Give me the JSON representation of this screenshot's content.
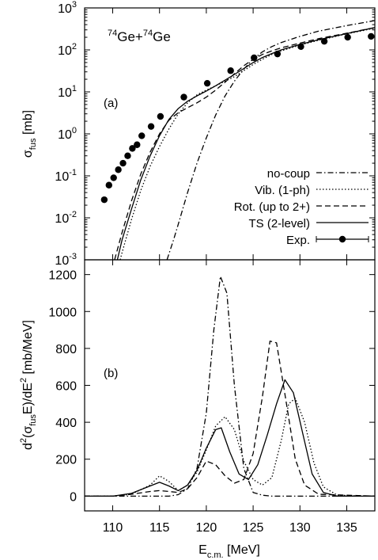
{
  "figure": {
    "xlabel_main": "E",
    "xlabel_sub": "c.m.",
    "xlabel_unit": " [MeV]"
  },
  "chart_data": [
    {
      "panel": "(a)",
      "type": "line",
      "title_parts": [
        "74",
        "Ge+",
        "74",
        "Ge"
      ],
      "ylabel_main": "σ",
      "ylabel_sub": "fus",
      "ylabel_unit": " [mb]",
      "xlim": [
        107,
        138
      ],
      "ylim": [
        0.001,
        1000
      ],
      "y_scale": "log",
      "x_ticks": [
        110,
        115,
        120,
        125,
        130,
        135
      ],
      "y_ticks": [
        0.001,
        0.01,
        0.1,
        1,
        10,
        100,
        1000
      ],
      "y_tick_base": "10",
      "y_tick_exps": [
        "-3",
        "-2",
        "-1",
        "0",
        "1",
        "2",
        "3"
      ],
      "legend_position": "bottom-right",
      "series": [
        {
          "name": "no-coup",
          "dash": "dashdot",
          "x": [
            115.8,
            116.5,
            117,
            118,
            119,
            120,
            121,
            122,
            123,
            124,
            125,
            126,
            127,
            128,
            130,
            132,
            135,
            138
          ],
          "y": [
            0.001,
            0.003,
            0.007,
            0.04,
            0.2,
            0.8,
            2.8,
            8,
            18,
            35,
            60,
            90,
            120,
            150,
            210,
            280,
            380,
            500
          ]
        },
        {
          "name": "Vib. (1-ph)",
          "dash": "dotted",
          "x": [
            110.8,
            111,
            112,
            113,
            114,
            115,
            116,
            117,
            118,
            119,
            120,
            121,
            122,
            123,
            124,
            125,
            126,
            127,
            128,
            130,
            132,
            135,
            138
          ],
          "y": [
            0.001,
            0.0015,
            0.009,
            0.045,
            0.17,
            0.5,
            1.3,
            3,
            5.5,
            8.5,
            11,
            14,
            18,
            23,
            32,
            45,
            60,
            78,
            95,
            130,
            170,
            240,
            330
          ]
        },
        {
          "name": "Rot. (up to 2+)",
          "dash": "dashed",
          "x": [
            110.2,
            111,
            112,
            113,
            114,
            115,
            116,
            117,
            118,
            119,
            120,
            121,
            122,
            123,
            124,
            125,
            126,
            127,
            128,
            130,
            132,
            135,
            138
          ],
          "y": [
            0.001,
            0.0045,
            0.025,
            0.11,
            0.37,
            1,
            2.1,
            3.2,
            4.2,
            5.5,
            7.5,
            11,
            17,
            27,
            42,
            60,
            78,
            95,
            112,
            145,
            185,
            250,
            340
          ]
        },
        {
          "name": "TS (2-level)",
          "dash": "solid",
          "x": [
            110.5,
            111,
            112,
            113,
            114,
            115,
            116,
            117,
            118,
            119,
            120,
            121,
            122,
            123,
            124,
            125,
            126,
            127,
            128,
            130,
            132,
            135,
            138
          ],
          "y": [
            0.001,
            0.003,
            0.016,
            0.08,
            0.3,
            0.9,
            2.2,
            4,
            6,
            8,
            10.5,
            14,
            19,
            26,
            36,
            50,
            66,
            82,
            100,
            135,
            175,
            245,
            340
          ]
        }
      ],
      "experimental": {
        "name": "Exp.",
        "x": [
          109.1,
          109.6,
          110.1,
          110.6,
          111.1,
          111.6,
          112.1,
          112.6,
          113.1,
          114.1,
          115.1,
          117.6,
          120.1,
          122.6,
          125.1,
          127.6,
          130.1,
          132.6,
          135.1,
          137.6
        ],
        "y": [
          0.027,
          0.06,
          0.09,
          0.14,
          0.2,
          0.3,
          0.45,
          0.55,
          0.9,
          1.5,
          2.6,
          7.5,
          16,
          32,
          65,
          80,
          120,
          160,
          200,
          210
        ]
      }
    },
    {
      "panel": "(b)",
      "type": "line",
      "ylabel": "d²(σfusE)/dE² [mb/MeV]",
      "ylabel_parts": [
        "d",
        "2",
        "(σ",
        "fus",
        "E)/dE",
        "2",
        " [mb/MeV]"
      ],
      "xlim": [
        107,
        138
      ],
      "ylim": [
        -80,
        1280
      ],
      "x_ticks": [
        110,
        115,
        120,
        125,
        130,
        135
      ],
      "y_ticks": [
        0,
        200,
        400,
        600,
        800,
        1000,
        1200
      ],
      "series": [
        {
          "name": "no-coup",
          "dash": "dashdot",
          "x": [
            107,
            116,
            117,
            118,
            119,
            120,
            120.8,
            121.5,
            122.2,
            123,
            124,
            125,
            126,
            127,
            129,
            138
          ],
          "y": [
            0,
            0,
            8,
            40,
            150,
            450,
            900,
            1190,
            1100,
            600,
            150,
            20,
            5,
            0,
            0,
            0
          ]
        },
        {
          "name": "Vib. (1-ph)",
          "dash": "dotted",
          "x": [
            107,
            110,
            112,
            114,
            115,
            116,
            117,
            118,
            119,
            120,
            121,
            122,
            123,
            124,
            125,
            126,
            127,
            128,
            128.8,
            129.5,
            130.5,
            131.5,
            132.5,
            134,
            138
          ],
          "y": [
            0,
            0,
            10,
            60,
            110,
            80,
            30,
            60,
            130,
            250,
            380,
            430,
            360,
            190,
            90,
            60,
            100,
            300,
            500,
            530,
            400,
            180,
            50,
            5,
            0
          ]
        },
        {
          "name": "Rot. (up to 2+)",
          "dash": "dashed",
          "x": [
            107,
            110,
            112,
            114,
            115,
            116,
            117,
            118,
            119,
            120,
            121,
            122,
            123,
            124,
            125,
            126,
            126.8,
            127.5,
            128.5,
            129.5,
            130.5,
            132,
            138
          ],
          "y": [
            0,
            0,
            10,
            25,
            30,
            25,
            20,
            40,
            100,
            190,
            170,
            110,
            70,
            90,
            230,
            540,
            840,
            830,
            520,
            200,
            60,
            10,
            0
          ]
        },
        {
          "name": "TS (2-level)",
          "dash": "solid",
          "x": [
            107,
            110,
            112,
            114,
            115,
            116,
            117,
            118,
            119,
            120,
            121,
            121.6,
            122.5,
            123.5,
            124.5,
            125.5,
            126.5,
            127.5,
            128.4,
            129.3,
            130.3,
            131.3,
            132.5,
            134,
            138
          ],
          "y": [
            0,
            0,
            15,
            55,
            75,
            55,
            30,
            60,
            140,
            260,
            360,
            370,
            240,
            120,
            90,
            170,
            330,
            500,
            630,
            560,
            340,
            120,
            20,
            0,
            0
          ]
        }
      ]
    }
  ]
}
